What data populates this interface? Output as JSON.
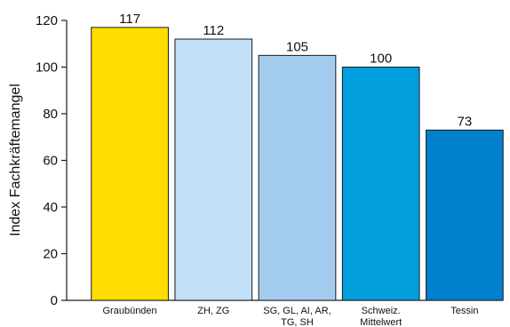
{
  "chart_data": {
    "type": "bar",
    "ylabel": "Index Fachkräftemangel",
    "xlabel": "",
    "ylim": [
      0,
      120
    ],
    "yticks": [
      0,
      20,
      40,
      60,
      80,
      100,
      120
    ],
    "grid": false,
    "categories": [
      [
        "Graubünden"
      ],
      [
        "ZH, ZG"
      ],
      [
        "SG, GL, AI, AR,",
        "TG, SH"
      ],
      [
        "Schweiz.",
        "Mittelwert"
      ],
      [
        "Tessin"
      ]
    ],
    "values": [
      117,
      112,
      105,
      100,
      73
    ],
    "colors": [
      "#FFDD00",
      "#C3DFF5",
      "#A3CBEE",
      "#009EDD",
      "#0080CC"
    ]
  }
}
